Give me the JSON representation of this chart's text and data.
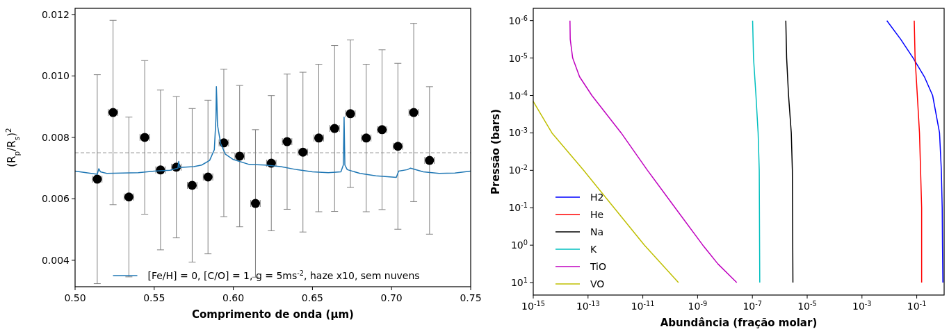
{
  "chart_data": [
    {
      "type": "scatter",
      "xlabel": "Comprimento de onda (μm)",
      "ylabel": "(R$_{p}$/R$_{s}$)$^{2}$",
      "xlim": [
        0.5,
        0.75
      ],
      "ylim": [
        0.00314,
        0.0122
      ],
      "xticks": [
        {
          "value": 0.5,
          "label": "0.50"
        },
        {
          "value": 0.55,
          "label": "0.55"
        },
        {
          "value": 0.6,
          "label": "0.60"
        },
        {
          "value": 0.65,
          "label": "0.65"
        },
        {
          "value": 0.7,
          "label": "0.70"
        },
        {
          "value": 0.75,
          "label": "0.75"
        }
      ],
      "yticks": [
        0.004,
        0.006,
        0.008,
        {
          "value": 0.01,
          "label": "0.010"
        },
        0.012
      ],
      "legend": "bottom",
      "ref_lines": [
        {
          "axis": "y",
          "value": 0.0075,
          "color": "#999999",
          "line_style": "dashed"
        }
      ],
      "series": [
        {
          "color": "#000000",
          "marker": "circle",
          "x": [
            0.514,
            0.524,
            0.534,
            0.544,
            0.554,
            0.564,
            0.574,
            0.584,
            0.594,
            0.604,
            0.614,
            0.624,
            0.634,
            0.644,
            0.654,
            0.664,
            0.674,
            0.684,
            0.694,
            0.704,
            0.714,
            0.724
          ],
          "values": [
            0.00664,
            0.00881,
            0.00606,
            0.008,
            0.00694,
            0.00703,
            0.00644,
            0.00671,
            0.00782,
            0.00739,
            0.00585,
            0.00716,
            0.00786,
            0.00752,
            0.00798,
            0.00829,
            0.00877,
            0.00798,
            0.00825,
            0.00771,
            0.00881,
            0.00725
          ],
          "errors": [
            0.0034,
            0.003,
            0.0026,
            0.0025,
            0.0026,
            0.0023,
            0.0025,
            0.0025,
            0.0024,
            0.0023,
            0.0024,
            0.0022,
            0.0022,
            0.0026,
            0.0024,
            0.0027,
            0.0024,
            0.0024,
            0.0026,
            0.0027,
            0.0029,
            0.0024
          ],
          "xerrors": [
            0.003,
            0.003,
            0.003,
            0.003,
            0.003,
            0.003,
            0.003,
            0.003,
            0.003,
            0.003,
            0.003,
            0.003,
            0.003,
            0.003,
            0.003,
            0.003,
            0.003,
            0.003,
            0.003,
            0.003,
            0.003,
            0.003
          ]
        },
        {
          "type": "line",
          "name": "[Fe/H] = 0, [C/O] = 1, g = 5ms$^{-2}$, haze x10, sem nuvens",
          "color": "#1f77b4",
          "marker": "none",
          "line_style": "solid",
          "x": [
            0.5,
            0.514,
            0.515,
            0.516,
            0.52,
            0.54,
            0.55,
            0.56,
            0.565,
            0.5655,
            0.566,
            0.575,
            0.58,
            0.585,
            0.588,
            0.589,
            0.5893,
            0.5896,
            0.59,
            0.592,
            0.595,
            0.6,
            0.61,
            0.62,
            0.63,
            0.64,
            0.65,
            0.66,
            0.668,
            0.6695,
            0.67,
            0.6705,
            0.672,
            0.68,
            0.69,
            0.703,
            0.7045,
            0.71,
            0.712,
            0.72,
            0.73,
            0.74,
            0.75
          ],
          "values": [
            0.0069,
            0.0068,
            0.00698,
            0.00688,
            0.00683,
            0.00685,
            0.0069,
            0.00693,
            0.007,
            0.00722,
            0.00702,
            0.00705,
            0.0071,
            0.00725,
            0.0076,
            0.0086,
            0.00965,
            0.0092,
            0.0084,
            0.0078,
            0.00745,
            0.00728,
            0.00712,
            0.0071,
            0.00705,
            0.00695,
            0.00688,
            0.00685,
            0.00688,
            0.0071,
            0.00866,
            0.0071,
            0.00695,
            0.00683,
            0.00675,
            0.0067,
            0.0069,
            0.00695,
            0.007,
            0.00688,
            0.00683,
            0.00684,
            0.0069
          ]
        }
      ]
    },
    {
      "type": "line",
      "xlabel": "Abundância (fração molar)",
      "ylabel": "Pressão (bars)",
      "log": "xy",
      "xlim": [
        1e-15,
        1
      ],
      "ylim": [
        21.5,
        4.7e-07
      ],
      "xticks": [
        {
          "value": 1e-15,
          "label": "10$^{-15}$"
        },
        {
          "value": 1e-13,
          "label": "10$^{-13}$"
        },
        {
          "value": 1e-11,
          "label": "10$^{-11}$"
        },
        {
          "value": 1e-09,
          "label": "10$^{-9}$"
        },
        {
          "value": 1e-07,
          "label": "10$^{-7}$"
        },
        {
          "value": 1e-05,
          "label": "10$^{-5}$"
        },
        {
          "value": 0.001,
          "label": "10$^{-3}$"
        },
        {
          "value": 0.1,
          "label": "10$^{-1}$"
        }
      ],
      "yticks": [
        {
          "value": 1e-06,
          "label": "10$^{-6}$"
        },
        {
          "value": 1e-05,
          "label": "10$^{-5}$"
        },
        {
          "value": 0.0001,
          "label": "10$^{-4}$"
        },
        {
          "value": 0.001,
          "label": "10$^{-3}$"
        },
        {
          "value": 0.01,
          "label": "10$^{-2}$"
        },
        {
          "value": 0.1,
          "label": "10$^{-1}$"
        },
        {
          "value": 1,
          "label": "10$^{0}$"
        },
        {
          "value": 10,
          "label": "10$^{1}$"
        }
      ],
      "legend": "bottom left",
      "marker": "none",
      "line_style": "solid",
      "series": [
        {
          "name": "H2",
          "color": "#0000ff",
          "x": [
            0.0081,
            0.026,
            0.074,
            0.19,
            0.38,
            0.68,
            0.79,
            0.85,
            0.87,
            0.9
          ],
          "values": [
            1e-06,
            3.16e-06,
            1e-05,
            3.16e-05,
            0.0001,
            0.001,
            0.01,
            0.1,
            1,
            10
          ]
        },
        {
          "name": "He",
          "color": "#ff0000",
          "x": [
            0.081,
            0.087,
            0.105,
            0.126,
            0.138,
            0.151,
            0.151,
            0.151
          ],
          "values": [
            1e-06,
            1e-05,
            0.0001,
            0.001,
            0.01,
            0.1,
            1,
            10
          ]
        },
        {
          "name": "Na",
          "color": "#000000",
          "x": [
            1.66e-06,
            1.78e-06,
            2.09e-06,
            2.63e-06,
            2.88e-06,
            3.02e-06
          ],
          "values": [
            1e-06,
            1e-05,
            0.0001,
            0.001,
            0.01,
            10
          ]
        },
        {
          "name": "K",
          "color": "#00bfbf",
          "x": [
            1.02e-07,
            1.1e-07,
            1.35e-07,
            1.62e-07,
            1.78e-07,
            1.86e-07
          ],
          "values": [
            1e-06,
            1e-05,
            0.0001,
            0.001,
            0.01,
            10
          ]
        },
        {
          "name": "TiO",
          "color": "#bf00bf",
          "x": [
            2.19e-14,
            2.24e-14,
            2.75e-14,
            4.9e-14,
            1.38e-13,
            1.62e-12,
            1.48e-11,
            1.51e-10,
            1.55e-09,
            5.5e-09,
            2.69e-08
          ],
          "values": [
            1e-06,
            3.16e-06,
            1e-05,
            3.16e-05,
            0.0001,
            0.001,
            0.01,
            0.1,
            1,
            3.16,
            10
          ]
        },
        {
          "name": "VO",
          "color": "#bfbf00",
          "x": [
            1e-15,
            4.8e-15,
            6.9e-14,
            8.9e-13,
            1.15e-11,
            2e-10
          ],
          "values": [
            0.000145,
            0.001,
            0.01,
            0.1,
            1,
            10
          ]
        }
      ]
    }
  ]
}
